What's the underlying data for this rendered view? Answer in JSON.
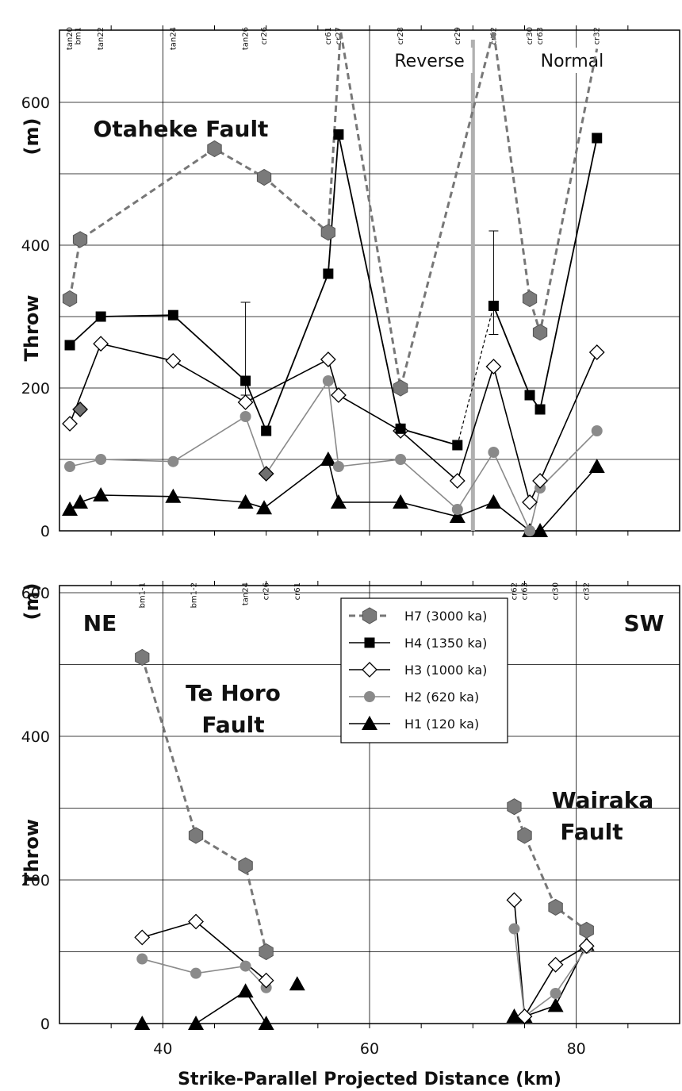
{
  "chart_data": [
    {
      "type": "line",
      "title": "Otaheke Fault",
      "ylabel": "Throw (m)",
      "xlabel": "",
      "xlim": [
        30,
        90
      ],
      "ylim": [
        0,
        600
      ],
      "y_ticks": [
        "0",
        "200",
        "400",
        "600"
      ],
      "grid": true,
      "region_labels": [
        "Reverse",
        "Normal"
      ],
      "divider_x": 70,
      "well_labels": [
        {
          "x": 31,
          "label": "tan20"
        },
        {
          "x": 31.8,
          "label": "bm1"
        },
        {
          "x": 34,
          "label": "tan22"
        },
        {
          "x": 41,
          "label": "tan24"
        },
        {
          "x": 48,
          "label": "tan26"
        },
        {
          "x": 49.8,
          "label": "cr26"
        },
        {
          "x": 56,
          "label": "cr61"
        },
        {
          "x": 57,
          "label": "cr27"
        },
        {
          "x": 63,
          "label": "cr28"
        },
        {
          "x": 68.5,
          "label": "cr29"
        },
        {
          "x": 72,
          "label": "cr62"
        },
        {
          "x": 75.5,
          "label": "cr30"
        },
        {
          "x": 76.5,
          "label": "cr63"
        },
        {
          "x": 82,
          "label": "cr32"
        }
      ],
      "series": [
        {
          "name": "H7 (3000 ka)",
          "color": "#808080",
          "marker": "hexagon",
          "dashed": true,
          "x": [
            31,
            32,
            45,
            49.8,
            56,
            57.2,
            63,
            72,
            75.5,
            76.5,
            82
          ],
          "y": [
            325,
            408,
            535,
            495,
            418,
            700,
            200,
            700,
            325,
            278,
            675
          ]
        },
        {
          "name": "H4 (1350 ka)",
          "color": "#000000",
          "marker": "square",
          "dashed": false,
          "x": [
            31,
            34,
            41,
            48,
            50,
            56,
            57,
            63,
            68.5,
            72,
            75.5,
            76.5,
            82
          ],
          "y": [
            260,
            300,
            302,
            210,
            140,
            360,
            555,
            143,
            120,
            315,
            190,
            170,
            550
          ],
          "error_bars": [
            {
              "x": 48,
              "low": 190,
              "high": 320
            },
            {
              "x": 72,
              "low": 275,
              "high": 420
            }
          ]
        },
        {
          "name": "H3 (1000 ka)",
          "color": "#000000",
          "marker": "diamond",
          "dashed": false,
          "x": [
            31,
            34,
            41,
            48,
            56,
            57,
            63,
            68.5,
            72,
            75.5,
            76.5,
            82
          ],
          "y": [
            150,
            262,
            238,
            180,
            240,
            190,
            140,
            70,
            230,
            40,
            70,
            250
          ]
        },
        {
          "name": "H2 (620 ka)",
          "color": "#808080",
          "marker": "circle",
          "dashed": false,
          "x": [
            31,
            34,
            41,
            48,
            50,
            56,
            57,
            63,
            68.5,
            72,
            75.5,
            76.5,
            82
          ],
          "y": [
            90,
            100,
            97,
            160,
            80,
            210,
            90,
            100,
            30,
            110,
            0,
            60,
            140
          ]
        },
        {
          "name": "H1 (120 ka)",
          "color": "#000000",
          "marker": "triangle",
          "dashed": false,
          "x": [
            31,
            32,
            34,
            41,
            48,
            49.8,
            56,
            57,
            63,
            68.5,
            72,
            75.5,
            76.5,
            82
          ],
          "y": [
            30,
            40,
            50,
            48,
            40,
            32,
            100,
            40,
            40,
            20,
            40,
            0,
            0,
            90
          ]
        }
      ]
    },
    {
      "type": "line",
      "title": "Te Horo Fault",
      "ylabel": "Throw (m)",
      "xlabel": "Strike-Parallel  Projected  Distance      (km)",
      "xlim": [
        30,
        90
      ],
      "ylim": [
        0,
        600
      ],
      "x_ticks": [
        "40",
        "60",
        "80"
      ],
      "y_ticks": [
        "0",
        "200",
        "400",
        "600"
      ],
      "grid": true,
      "corner_labels": [
        "NE",
        "SW"
      ],
      "second_fault_label": "Wairaka Fault",
      "legend_position": "top-center",
      "well_labels": [
        {
          "x": 38,
          "label": "bm1-1"
        },
        {
          "x": 43,
          "label": "bm1-2"
        },
        {
          "x": 48,
          "label": "tan24"
        },
        {
          "x": 50,
          "label": "cr26"
        },
        {
          "x": 53,
          "label": "cr61"
        },
        {
          "x": 74,
          "label": "cr62"
        },
        {
          "x": 75,
          "label": "cr63"
        },
        {
          "x": 78,
          "label": "cr30"
        },
        {
          "x": 81,
          "label": "cr32"
        }
      ],
      "series": [
        {
          "name": "H7 (3000 ka)",
          "color": "#808080",
          "marker": "hexagon",
          "dashed": true,
          "segments": [
            {
              "x": [
                38,
                43.2,
                48,
                50
              ],
              "y": [
                510,
                262,
                220,
                100
              ]
            },
            {
              "x": [
                74,
                75,
                78,
                81
              ],
              "y": [
                302,
                262,
                162,
                130
              ]
            }
          ]
        },
        {
          "name": "H4 (1350 ka)",
          "color": "#000000",
          "marker": "square",
          "dashed": false,
          "segments": []
        },
        {
          "name": "H3 (1000 ka)",
          "color": "#000000",
          "marker": "diamond",
          "dashed": false,
          "segments": [
            {
              "x": [
                38,
                43.2,
                50
              ],
              "y": [
                120,
                142,
                60
              ]
            },
            {
              "x": [
                74,
                75
              ]
            },
            {
              "x": [
                75,
                78,
                81
              ],
              "y": [
                10,
                82,
                108
              ]
            }
          ]
        },
        {
          "name": "H2 (620 ka)",
          "color": "#808080",
          "marker": "circle",
          "dashed": false,
          "segments": [
            {
              "x": [
                38,
                43.2,
                48,
                50
              ],
              "y": [
                90,
                70,
                80,
                50
              ]
            },
            {
              "x": [
                74,
                75
              ]
            },
            {
              "x": [
                75,
                78,
                81
              ],
              "y": [
                10,
                42,
                105
              ]
            }
          ]
        },
        {
          "name": "H1 (120 ka)",
          "color": "#000000",
          "marker": "triangle",
          "dashed": false,
          "segments": [
            {
              "x": [
                38
              ],
              "y": [
                0
              ]
            },
            {
              "x": [
                43.2,
                48,
                50
              ],
              "y": [
                0,
                45,
                0
              ]
            },
            {
              "x": [
                53
              ],
              "y": [
                55
              ]
            },
            {
              "x": [
                74,
                75,
                78,
                81
              ],
              "y": [
                10,
                10,
                25,
                110
              ]
            }
          ]
        }
      ]
    }
  ]
}
